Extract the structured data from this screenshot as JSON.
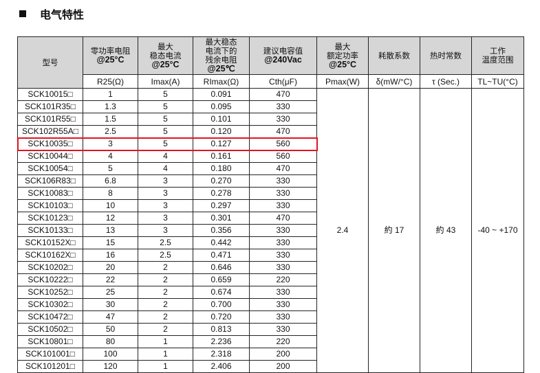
{
  "section_title": "电气特性",
  "headers": [
    {
      "cn": "型号",
      "en": "",
      "unit": ""
    },
    {
      "cn": "零功率电阻",
      "en": "@25°C",
      "unit": "R25(Ω)"
    },
    {
      "cn": "最大 稳态电流",
      "en": "@25°C",
      "unit": "Imax(A)"
    },
    {
      "cn": "最大稳态 电流下的 残余电阻",
      "en": "@25℃",
      "unit": "RImax(Ω)"
    },
    {
      "cn": "建议电容值",
      "en": "@240Vac",
      "unit": "Cth(μF)"
    },
    {
      "cn": "最大 额定功率",
      "en": "@25°C",
      "unit": "Pmax(W)"
    },
    {
      "cn": "耗散系数",
      "en": "",
      "unit": "δ(mW/°C)"
    },
    {
      "cn": "热时常数",
      "en": "",
      "unit": "τ (Sec.)"
    },
    {
      "cn": "工作 温度范围",
      "en": "",
      "unit": "TL~TU(°C)"
    }
  ],
  "highlight_color": "#e0141e",
  "highlighted_model": "SCK10035□",
  "rows": [
    [
      "SCK10015□",
      "1",
      "5",
      "0.091",
      "470"
    ],
    [
      "SCK101R35□",
      "1.3",
      "5",
      "0.095",
      "330"
    ],
    [
      "SCK101R55□",
      "1.5",
      "5",
      "0.101",
      "330"
    ],
    [
      "SCK102R55A□",
      "2.5",
      "5",
      "0.120",
      "470"
    ],
    [
      "SCK10035□",
      "3",
      "5",
      "0.127",
      "560"
    ],
    [
      "SCK10044□",
      "4",
      "4",
      "0.161",
      "560"
    ],
    [
      "SCK10054□",
      "5",
      "4",
      "0.180",
      "470"
    ],
    [
      "SCK106R83□",
      "6.8",
      "3",
      "0.270",
      "330"
    ],
    [
      "SCK10083□",
      "8",
      "3",
      "0.278",
      "330"
    ],
    [
      "SCK10103□",
      "10",
      "3",
      "0.297",
      "330"
    ],
    [
      "SCK10123□",
      "12",
      "3",
      "0.301",
      "470"
    ],
    [
      "SCK10133□",
      "13",
      "3",
      "0.356",
      "330"
    ],
    [
      "SCK10152X□",
      "15",
      "2.5",
      "0.442",
      "330"
    ],
    [
      "SCK10162X□",
      "16",
      "2.5",
      "0.471",
      "330"
    ],
    [
      "SCK10202□",
      "20",
      "2",
      "0.646",
      "330"
    ],
    [
      "SCK10222□",
      "22",
      "2",
      "0.659",
      "220"
    ],
    [
      "SCK10252□",
      "25",
      "2",
      "0.674",
      "330"
    ],
    [
      "SCK10302□",
      "30",
      "2",
      "0.700",
      "330"
    ],
    [
      "SCK10472□",
      "47",
      "2",
      "0.720",
      "330"
    ],
    [
      "SCK10502□",
      "50",
      "2",
      "0.813",
      "330"
    ],
    [
      "SCK10801□",
      "80",
      "1",
      "2.236",
      "220"
    ],
    [
      "SCK101001□",
      "100",
      "1",
      "2.318",
      "200"
    ],
    [
      "SCK101201□",
      "120",
      "1",
      "2.406",
      "200"
    ]
  ],
  "shared": {
    "pmax": "2.4",
    "dissipation": "約 17",
    "tau": "約 43",
    "temp_range": "-40 ~ +170"
  }
}
